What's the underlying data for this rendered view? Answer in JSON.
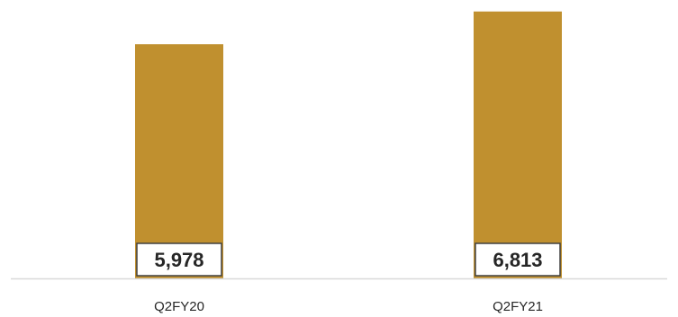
{
  "chart_data": {
    "type": "bar",
    "categories": [
      "Q2FY20",
      "Q2FY21"
    ],
    "values": [
      5978,
      6813
    ],
    "data_labels": [
      "5,978",
      "6,813"
    ],
    "title": "",
    "xlabel": "",
    "ylabel": "",
    "ylim": [
      0,
      6900
    ],
    "grid": false,
    "legend": "none",
    "colors": {
      "bar": "#C0902F",
      "label_box_fill": "#FFFFFF",
      "label_box_border": "#404040",
      "axis": "#D9D9D9",
      "text": "#262626"
    }
  }
}
